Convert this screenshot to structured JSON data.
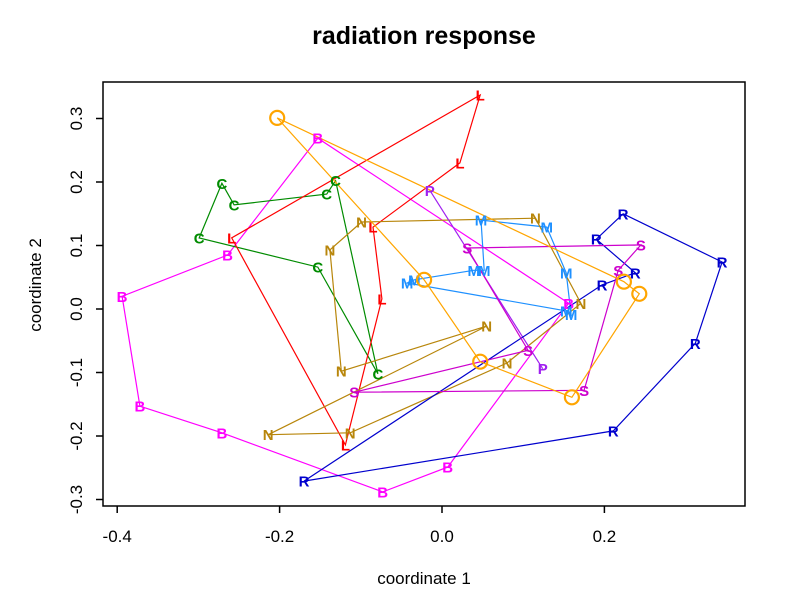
{
  "title": "radiation response",
  "axes": {
    "xlabel": "coordinate 1",
    "ylabel": "coordinate 2"
  },
  "chart_data": {
    "type": "scatter",
    "title": "radiation response",
    "xlabel": "coordinate 1",
    "ylabel": "coordinate 2",
    "xlim": [
      -0.417,
      0.373
    ],
    "ylim": [
      -0.31,
      0.358
    ],
    "grid": false,
    "legend": "none",
    "background": "#FFFFFF",
    "x_ticks": [
      -0.4,
      -0.2,
      0.0,
      0.2
    ],
    "x_tick_labels": [
      "-0.4",
      "-0.2",
      "0.0",
      "0.2"
    ],
    "y_ticks": [
      0.3,
      0.2,
      0.1,
      0.0,
      -0.1,
      -0.2,
      -0.3
    ],
    "y_tick_labels": [
      "0.3",
      "0.2",
      "0.1",
      "0.0",
      "-0.1",
      "-0.2",
      "-0.3"
    ],
    "series": [
      {
        "name": "B",
        "symbol": "B",
        "color": "#FF00FF",
        "closed": true,
        "points": [
          [
            -0.153,
            0.269
          ],
          [
            -0.264,
            0.085
          ],
          [
            -0.394,
            0.02
          ],
          [
            -0.372,
            -0.153
          ],
          [
            -0.271,
            -0.195
          ],
          [
            -0.073,
            -0.288
          ],
          [
            0.007,
            -0.249
          ],
          [
            0.156,
            0.009
          ]
        ],
        "path": [
          0,
          1,
          2,
          3,
          4,
          5,
          6,
          7
        ]
      },
      {
        "name": "C",
        "symbol": "C",
        "color": "#008B00",
        "closed": true,
        "points": [
          [
            -0.271,
            0.198
          ],
          [
            -0.256,
            0.164
          ],
          [
            -0.131,
            0.202
          ],
          [
            -0.142,
            0.181
          ],
          [
            -0.299,
            0.112
          ],
          [
            -0.153,
            0.066
          ],
          [
            -0.079,
            -0.102
          ]
        ],
        "path": [
          4,
          0,
          1,
          3,
          2,
          6,
          5
        ]
      },
      {
        "name": "L",
        "symbol": "L",
        "color": "#FF0000",
        "closed": true,
        "points": [
          [
            0.047,
            0.337
          ],
          [
            0.022,
            0.23
          ],
          [
            -0.085,
            0.129
          ],
          [
            -0.259,
            0.112
          ],
          [
            -0.074,
            0.016
          ],
          [
            -0.119,
            -0.214
          ]
        ],
        "path": [
          0,
          1,
          2,
          4,
          5,
          3
        ]
      },
      {
        "name": "M",
        "symbol": "M",
        "color": "#1E90FF",
        "closed": true,
        "points": [
          [
            0.048,
            0.14
          ],
          [
            0.129,
            0.129
          ],
          [
            0.039,
            0.061
          ],
          [
            0.052,
            0.061
          ],
          [
            -0.043,
            0.041
          ],
          [
            -0.034,
            0.046
          ],
          [
            0.153,
            0.057
          ],
          [
            0.153,
            -0.003
          ],
          [
            0.159,
            -0.009
          ]
        ],
        "path": [
          0,
          1,
          6,
          8,
          7,
          4,
          5,
          2,
          3
        ]
      },
      {
        "name": "N",
        "symbol": "N",
        "color": "#B8860B",
        "closed": true,
        "points": [
          [
            -0.099,
            0.137
          ],
          [
            0.115,
            0.143
          ],
          [
            -0.138,
            0.093
          ],
          [
            0.055,
            -0.027
          ],
          [
            0.171,
            0.009
          ],
          [
            0.08,
            -0.085
          ],
          [
            -0.124,
            -0.098
          ],
          [
            -0.113,
            -0.195
          ],
          [
            -0.214,
            -0.198
          ]
        ],
        "path": [
          8,
          7,
          5,
          4,
          1,
          0,
          2,
          6,
          3
        ]
      },
      {
        "name": "P",
        "symbol": "P",
        "color": "#A020F0",
        "closed": false,
        "points": [
          [
            -0.015,
            0.187
          ],
          [
            0.124,
            -0.094
          ]
        ],
        "path": [
          0,
          1
        ]
      },
      {
        "name": "R",
        "symbol": "R",
        "color": "#0000CD",
        "closed": true,
        "points": [
          [
            0.223,
            0.15
          ],
          [
            0.19,
            0.11
          ],
          [
            0.345,
            0.074
          ],
          [
            0.238,
            0.057
          ],
          [
            0.197,
            0.038
          ],
          [
            0.312,
            -0.054
          ],
          [
            0.211,
            -0.192
          ],
          [
            -0.17,
            -0.271
          ]
        ],
        "path": [
          0,
          2,
          5,
          6,
          7,
          4,
          3,
          1
        ]
      },
      {
        "name": "S",
        "symbol": "S",
        "color": "#CD00CD",
        "closed": true,
        "points": [
          [
            0.031,
            0.096
          ],
          [
            0.245,
            0.101
          ],
          [
            0.217,
            0.061
          ],
          [
            0.106,
            -0.065
          ],
          [
            0.175,
            -0.128
          ],
          [
            -0.108,
            -0.131
          ]
        ],
        "path": [
          0,
          1,
          2,
          4,
          5,
          3
        ]
      },
      {
        "name": "O-circle",
        "symbol": "circle",
        "color": "#FFA500",
        "closed": true,
        "points": [
          [
            -0.203,
            0.301
          ],
          [
            -0.022,
            0.046
          ],
          [
            0.224,
            0.043
          ],
          [
            0.243,
            0.024
          ],
          [
            0.047,
            -0.083
          ],
          [
            0.16,
            -0.139
          ]
        ],
        "path": [
          0,
          1,
          4,
          5,
          3,
          2
        ]
      }
    ]
  }
}
